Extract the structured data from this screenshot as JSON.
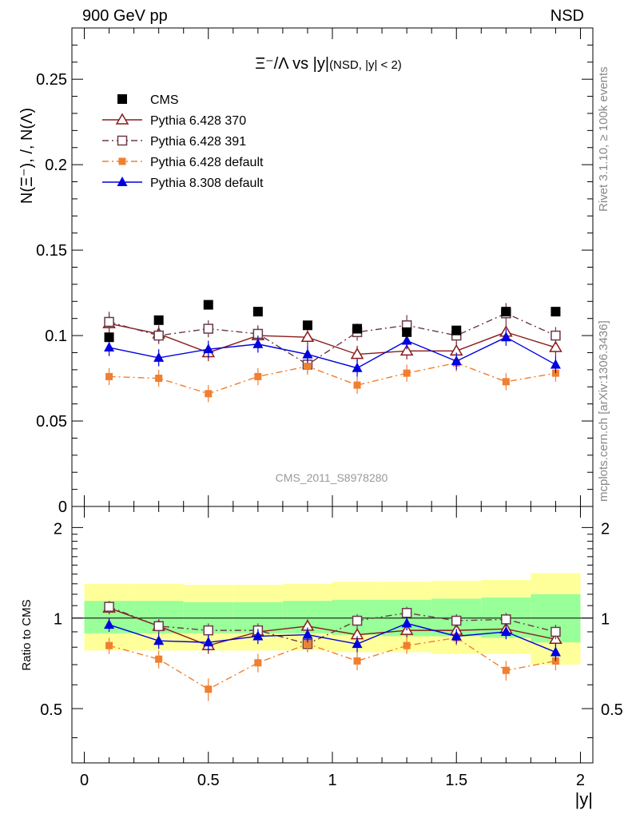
{
  "header": {
    "left": "900 GeV pp",
    "right": "NSD"
  },
  "side_labels": {
    "rivet": "Rivet 3.1.10, ≥ 100k events",
    "mcplots": "mcplots.cern.ch [arXiv:1306.3436]"
  },
  "colors": {
    "cms": "#000000",
    "py6_370": "#8b1a1a",
    "py6_391": "#6b3a48",
    "py6_default": "#f07f2f",
    "py8_default": "#0000e0",
    "band_outer": "#ffff99",
    "band_inner": "#99ff99"
  },
  "chart_data": [
    {
      "type": "scatter",
      "title": "Ξ⁻/Λ vs |y|",
      "title_suffix": "(NSD, |y| < 2)",
      "ylabel": "N(Ξ⁻), /, N(Λ)",
      "xlabel": "|y|",
      "watermark": "CMS_2011_S8978280",
      "xlim": [
        -0.05,
        2.05
      ],
      "ylim": [
        0,
        0.28
      ],
      "yticks": [
        0,
        0.05,
        0.1,
        0.15,
        0.2,
        0.25
      ],
      "ytick_labels": [
        "0",
        "0.05",
        "0.1",
        "0.15",
        "0.2",
        "0.25"
      ],
      "legend_position": "top-left",
      "x": [
        0.1,
        0.3,
        0.5,
        0.7,
        0.9,
        1.1,
        1.3,
        1.5,
        1.7,
        1.9
      ],
      "series": [
        {
          "name": "CMS",
          "key": "cms",
          "marker": "square-filled",
          "line": "none",
          "values": [
            0.099,
            0.109,
            0.118,
            0.114,
            0.106,
            0.104,
            0.102,
            0.103,
            0.114,
            0.114
          ]
        },
        {
          "name": "Pythia 6.428 370",
          "key": "py6_370",
          "marker": "triangle-open",
          "line": "solid",
          "values": [
            0.107,
            0.101,
            0.09,
            0.1,
            0.099,
            0.089,
            0.091,
            0.091,
            0.102,
            0.093
          ],
          "errors": [
            0.006,
            0.005,
            0.005,
            0.005,
            0.005,
            0.005,
            0.005,
            0.005,
            0.005,
            0.005
          ]
        },
        {
          "name": "Pythia 6.428 391",
          "key": "py6_391",
          "marker": "square-open",
          "line": "dashdot",
          "values": [
            0.108,
            0.1,
            0.104,
            0.101,
            0.083,
            0.102,
            0.106,
            0.1,
            0.113,
            0.1
          ],
          "errors": [
            0.006,
            0.005,
            0.005,
            0.005,
            0.005,
            0.005,
            0.006,
            0.005,
            0.006,
            0.005
          ]
        },
        {
          "name": "Pythia 6.428 default",
          "key": "py6_default",
          "marker": "square-filled-small",
          "line": "dashdot",
          "values": [
            0.076,
            0.075,
            0.066,
            0.076,
            0.082,
            0.071,
            0.078,
            0.084,
            0.073,
            0.078
          ],
          "errors": [
            0.005,
            0.005,
            0.005,
            0.005,
            0.005,
            0.005,
            0.005,
            0.005,
            0.005,
            0.005
          ]
        },
        {
          "name": "Pythia 8.308 default",
          "key": "py8_default",
          "marker": "triangle-filled",
          "line": "solid",
          "values": [
            0.093,
            0.087,
            0.092,
            0.095,
            0.089,
            0.081,
            0.097,
            0.085,
            0.099,
            0.083
          ],
          "errors": [
            0.005,
            0.005,
            0.005,
            0.005,
            0.005,
            0.005,
            0.005,
            0.005,
            0.005,
            0.005
          ]
        }
      ]
    },
    {
      "type": "scatter",
      "ylabel": "Ratio to CMS",
      "xlabel": "|y|",
      "xlim": [
        -0.05,
        2.05
      ],
      "ylim": [
        0.33,
        2.35
      ],
      "log_y": true,
      "xticks": [
        0,
        0.5,
        1,
        1.5,
        2
      ],
      "xtick_labels": [
        "0",
        "0.5",
        "1",
        "1.5",
        "2"
      ],
      "yticks": [
        0.5,
        1,
        2
      ],
      "ytick_labels": [
        "0.5",
        "1",
        "2"
      ],
      "bands": {
        "x_edges": [
          0.0,
          0.2,
          0.4,
          0.6,
          0.8,
          1.0,
          1.2,
          1.4,
          1.6,
          1.8,
          2.0
        ],
        "outer_lo": [
          0.78,
          0.78,
          0.78,
          0.78,
          0.78,
          0.77,
          0.77,
          0.76,
          0.76,
          0.7
        ],
        "outer_hi": [
          1.3,
          1.3,
          1.29,
          1.29,
          1.3,
          1.32,
          1.32,
          1.33,
          1.34,
          1.41
        ],
        "inner_lo": [
          0.89,
          0.89,
          0.89,
          0.89,
          0.89,
          0.88,
          0.87,
          0.87,
          0.86,
          0.83
        ],
        "inner_hi": [
          1.14,
          1.14,
          1.13,
          1.13,
          1.14,
          1.15,
          1.15,
          1.16,
          1.17,
          1.2
        ]
      },
      "series": [
        {
          "name": "Pythia 6.428 370",
          "key": "py6_370",
          "marker": "triangle-open",
          "line": "solid",
          "values": [
            1.08,
            0.94,
            0.81,
            0.9,
            0.94,
            0.88,
            0.91,
            0.91,
            0.92,
            0.85
          ],
          "errors": [
            0.05,
            0.05,
            0.05,
            0.05,
            0.05,
            0.05,
            0.05,
            0.05,
            0.05,
            0.05
          ]
        },
        {
          "name": "Pythia 6.428 391",
          "key": "py6_391",
          "marker": "square-open",
          "line": "dashdot",
          "values": [
            1.09,
            0.94,
            0.91,
            0.91,
            0.82,
            0.98,
            1.04,
            0.98,
            0.99,
            0.9
          ],
          "errors": [
            0.05,
            0.05,
            0.05,
            0.05,
            0.05,
            0.05,
            0.05,
            0.05,
            0.05,
            0.05
          ]
        },
        {
          "name": "Pythia 6.428 default",
          "key": "py6_default",
          "marker": "square-filled-small",
          "line": "dashdot",
          "values": [
            0.81,
            0.73,
            0.58,
            0.71,
            0.82,
            0.72,
            0.81,
            0.86,
            0.67,
            0.72
          ],
          "errors": [
            0.05,
            0.05,
            0.05,
            0.05,
            0.05,
            0.05,
            0.05,
            0.05,
            0.05,
            0.05
          ]
        },
        {
          "name": "Pythia 8.308 default",
          "key": "py8_default",
          "marker": "triangle-filled",
          "line": "solid",
          "values": [
            0.95,
            0.84,
            0.83,
            0.87,
            0.88,
            0.82,
            0.96,
            0.87,
            0.9,
            0.77
          ],
          "errors": [
            0.05,
            0.05,
            0.05,
            0.05,
            0.05,
            0.05,
            0.05,
            0.05,
            0.05,
            0.05
          ]
        }
      ]
    }
  ]
}
